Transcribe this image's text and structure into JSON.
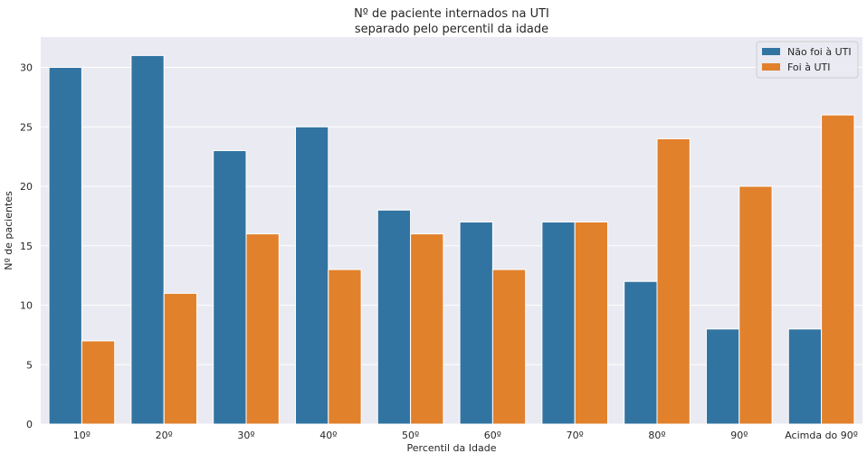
{
  "chart_data": {
    "type": "bar",
    "title": [
      "Nº de paciente internados na UTI",
      "separado pelo percentil da idade"
    ],
    "xlabel": "Percentil da Idade",
    "ylabel": "Nº de pacientes",
    "categories": [
      "10º",
      "20º",
      "30º",
      "40º",
      "50º",
      "60º",
      "70º",
      "80º",
      "90º",
      "Acimda do 90º"
    ],
    "series": [
      {
        "name": "Não foi à UTI",
        "color": "#3274a1",
        "values": [
          30,
          31,
          23,
          25,
          18,
          17,
          17,
          12,
          8,
          8
        ]
      },
      {
        "name": "Foi à UTI",
        "color": "#e1812c",
        "values": [
          7,
          11,
          16,
          13,
          16,
          13,
          17,
          24,
          20,
          26
        ]
      }
    ],
    "ylim": [
      0,
      32.55
    ],
    "yticks": [
      0,
      5,
      10,
      15,
      20,
      25,
      30
    ],
    "grid": true,
    "legend_position": "top-right",
    "background_color": "#eaeaf2"
  }
}
